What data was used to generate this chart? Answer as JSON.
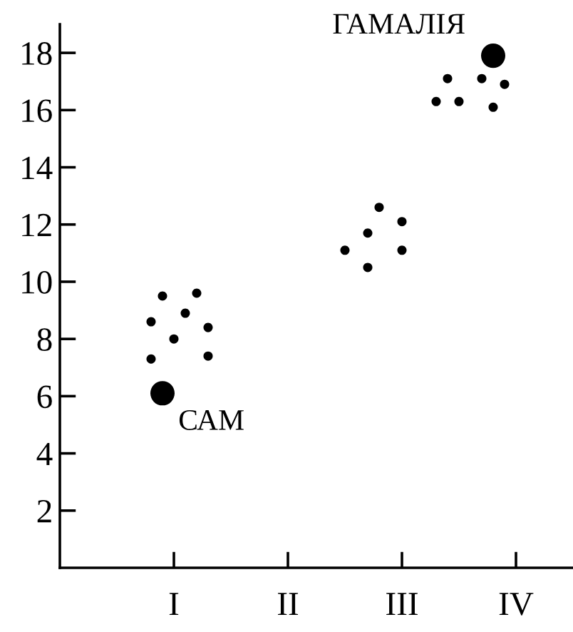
{
  "chart_data": {
    "type": "scatter",
    "marker": "circle",
    "grid": false,
    "legend": false,
    "ylim": [
      0,
      19
    ],
    "yticks": [
      2,
      4,
      6,
      8,
      10,
      12,
      14,
      16,
      18
    ],
    "categories": [
      null,
      null,
      null,
      null,
      null,
      null,
      null,
      null,
      null,
      null,
      "I",
      null,
      null,
      null,
      null,
      null,
      null,
      null,
      null,
      null,
      "II",
      null,
      null,
      null,
      null,
      null,
      null,
      null,
      null,
      null,
      "III",
      null,
      null,
      null,
      null,
      null,
      null,
      null,
      null,
      null,
      "IV",
      null,
      null,
      null,
      null,
      null
    ],
    "series": [
      {
        "color": "#000000",
        "values": [
          null,
          null,
          null,
          null,
          null,
          null,
          null,
          null,
          8.6,
          9.5,
          8.0,
          8.9,
          9.6,
          8.4,
          null,
          null,
          null,
          null,
          null,
          null,
          null,
          null,
          null,
          null,
          null,
          11.1,
          null,
          11.7,
          12.6,
          null,
          12.1,
          null,
          null,
          16.3,
          17.1,
          16.3,
          null,
          17.1,
          16.1,
          16.9,
          null,
          null,
          null,
          null,
          null,
          null
        ]
      },
      {
        "color": "#000000",
        "values": [
          null,
          null,
          null,
          null,
          null,
          null,
          null,
          null,
          7.3,
          null,
          null,
          null,
          null,
          7.4,
          null,
          null,
          null,
          null,
          null,
          null,
          null,
          null,
          null,
          null,
          null,
          null,
          null,
          10.5,
          null,
          null,
          11.1,
          null,
          null,
          null,
          null,
          null,
          null,
          null,
          null,
          null,
          null,
          null,
          null,
          null,
          null,
          null
        ]
      },
      {
        "color": "#000000",
        "type": "bubble",
        "values": [
          null,
          null,
          null,
          null,
          null,
          null,
          null,
          null,
          null,
          6.1,
          null,
          null,
          null,
          null,
          null,
          null,
          null,
          null,
          null,
          null,
          null,
          null,
          null,
          null,
          null,
          null,
          null,
          null,
          null,
          null,
          null,
          null,
          null,
          null,
          null,
          null,
          null,
          null,
          17.9,
          null,
          null,
          null,
          null,
          null,
          null,
          null
        ],
        "sizes": [
          null,
          null,
          null,
          null,
          null,
          null,
          null,
          null,
          null,
          1,
          null,
          null,
          null,
          null,
          null,
          null,
          null,
          null,
          null,
          null,
          null,
          null,
          null,
          null,
          null,
          null,
          null,
          null,
          null,
          null,
          null,
          null,
          null,
          null,
          null,
          null,
          null,
          null,
          1,
          null,
          null,
          null,
          null,
          null,
          null,
          null
        ]
      }
    ],
    "annotations": [
      "САМ",
      "ГАМАЛІЯ"
    ]
  }
}
